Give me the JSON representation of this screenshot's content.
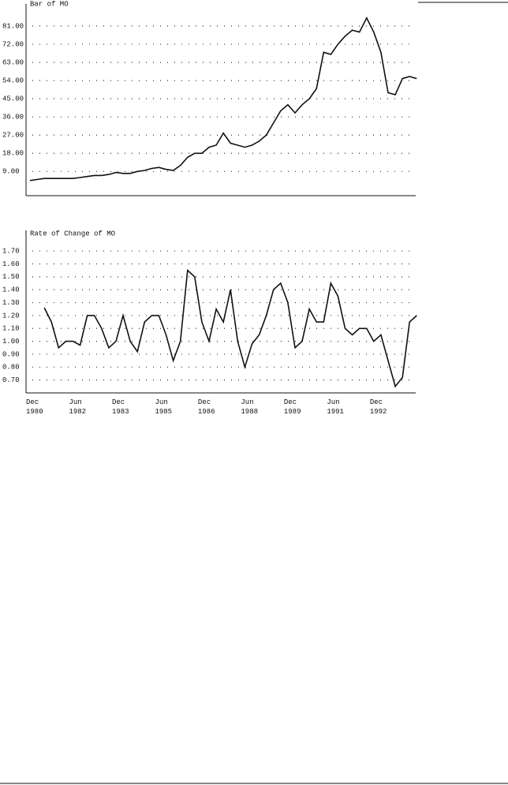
{
  "chart_data": [
    {
      "type": "line",
      "title": "Bar of MO",
      "color": "#111111",
      "grid": true,
      "ylim": [
        -3,
        90
      ],
      "yticks": [
        {
          "value": 9,
          "label": "9.00"
        },
        {
          "value": 18,
          "label": "18.00"
        },
        {
          "value": 27,
          "label": "27.00"
        },
        {
          "value": 36,
          "label": "36.00"
        },
        {
          "value": 45,
          "label": "45.00"
        },
        {
          "value": 54,
          "label": "54.00"
        },
        {
          "value": 63,
          "label": "63.00"
        },
        {
          "value": 72,
          "label": "72.00"
        },
        {
          "value": 81,
          "label": "81.00"
        }
      ],
      "values": [
        4.5,
        5,
        5.5,
        5.5,
        5.5,
        5.5,
        5.5,
        6,
        6.5,
        7,
        7,
        7.5,
        8.5,
        8,
        8,
        9,
        9.5,
        10.5,
        11,
        10,
        9.5,
        12,
        16,
        18,
        18,
        21,
        22,
        28,
        23,
        22,
        21,
        22,
        24,
        27,
        33,
        39,
        42,
        38,
        42,
        45,
        50,
        68,
        67,
        72,
        76,
        79,
        78,
        85,
        78,
        68,
        48,
        47,
        55,
        56,
        55
      ]
    },
    {
      "type": "line",
      "title": "Rate of Change of MO",
      "color": "#111111",
      "grid": true,
      "ylim": [
        0.6,
        1.75
      ],
      "yticks": [
        {
          "value": 0.7,
          "label": "0.70"
        },
        {
          "value": 0.8,
          "label": "0.80"
        },
        {
          "value": 0.9,
          "label": "0.90"
        },
        {
          "value": 1.0,
          "label": "1.00"
        },
        {
          "value": 1.1,
          "label": "1.10"
        },
        {
          "value": 1.2,
          "label": "1.20"
        },
        {
          "value": 1.3,
          "label": "1.30"
        },
        {
          "value": 1.4,
          "label": "1.40"
        },
        {
          "value": 1.5,
          "label": "1.50"
        },
        {
          "value": 1.6,
          "label": "1.60"
        },
        {
          "value": 1.7,
          "label": "1.70"
        }
      ],
      "categories": [
        "Dec\n1980",
        null,
        null,
        null,
        null,
        null,
        "Jun\n1982",
        null,
        null,
        null,
        null,
        null,
        "Dec\n1983",
        null,
        null,
        null,
        null,
        null,
        "Jun\n1985",
        null,
        null,
        null,
        null,
        null,
        "Dec\n1986",
        null,
        null,
        null,
        null,
        null,
        "Jun\n1988",
        null,
        null,
        null,
        null,
        null,
        "Dec\n1989",
        null,
        null,
        null,
        null,
        null,
        "Jun\n1991",
        null,
        null,
        null,
        null,
        null,
        "Dec\n1992",
        null,
        null,
        null,
        null,
        null,
        null
      ],
      "values": [
        null,
        null,
        1.26,
        1.15,
        0.95,
        1.0,
        1.0,
        0.97,
        1.2,
        1.2,
        1.1,
        0.95,
        1.0,
        1.2,
        1.0,
        0.92,
        1.15,
        1.2,
        1.2,
        1.05,
        0.85,
        1.0,
        1.55,
        1.5,
        1.15,
        1.0,
        1.25,
        1.15,
        1.4,
        1.0,
        0.8,
        0.98,
        1.05,
        1.2,
        1.4,
        1.45,
        1.3,
        0.95,
        1.0,
        1.25,
        1.15,
        1.15,
        1.45,
        1.35,
        1.1,
        1.05,
        1.1,
        1.1,
        1.0,
        1.05,
        0.85,
        0.65,
        0.72,
        1.15,
        1.2
      ]
    }
  ]
}
